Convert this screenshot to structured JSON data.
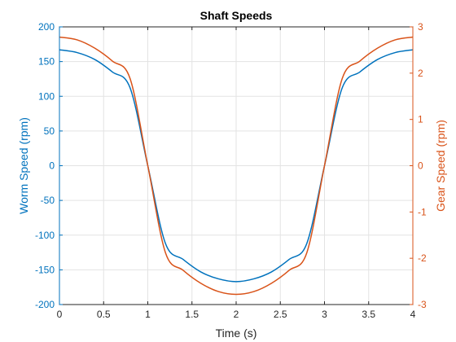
{
  "chart_data": {
    "type": "line",
    "title": "Shaft Speeds",
    "xlabel": "Time (s)",
    "xlim": [
      0,
      4
    ],
    "x_ticks": [
      "0",
      "0.5",
      "1",
      "1.5",
      "2",
      "2.5",
      "3",
      "3.5",
      "4"
    ],
    "grid": true,
    "legend": false,
    "left_axis": {
      "label": "Worm Speed (rpm)",
      "ylim": [
        -200,
        200
      ],
      "ticks": [
        "200",
        "150",
        "100",
        "50",
        "0",
        "-50",
        "-100",
        "-150",
        "-200"
      ],
      "color": "#0072BD"
    },
    "right_axis": {
      "label": "Gear Speed (rpm)",
      "ylim": [
        -3,
        3
      ],
      "ticks": [
        "3",
        "2",
        "1",
        "0",
        "-1",
        "-2",
        "-3"
      ],
      "color": "#D95319"
    },
    "series": [
      {
        "axis": "left",
        "color": "#0072BD",
        "x": [
          0,
          0.2,
          0.4,
          0.6,
          0.8,
          1.0,
          1.2,
          1.4,
          1.6,
          1.8,
          2.0,
          2.2,
          2.4,
          2.6,
          2.8,
          3.0,
          3.2,
          3.4,
          3.6,
          3.8,
          4.0
        ],
        "values": [
          167,
          163,
          153,
          135,
          112,
          0,
          -112,
          -135,
          -153,
          -163,
          -167,
          -163,
          -153,
          -135,
          -112,
          0,
          112,
          135,
          153,
          163,
          167
        ]
      },
      {
        "axis": "right",
        "color": "#D95319",
        "x": [
          0,
          0.2,
          0.4,
          0.6,
          0.8,
          1.0,
          1.2,
          1.4,
          1.6,
          1.8,
          2.0,
          2.2,
          2.4,
          2.6,
          2.8,
          3.0,
          3.2,
          3.4,
          3.6,
          3.8,
          4.0
        ],
        "values": [
          2.78,
          2.72,
          2.54,
          2.26,
          1.88,
          0,
          -1.88,
          -2.26,
          -2.54,
          -2.72,
          -2.78,
          -2.72,
          -2.54,
          -2.26,
          -1.88,
          0,
          1.88,
          2.26,
          2.54,
          2.72,
          2.78
        ]
      }
    ]
  }
}
